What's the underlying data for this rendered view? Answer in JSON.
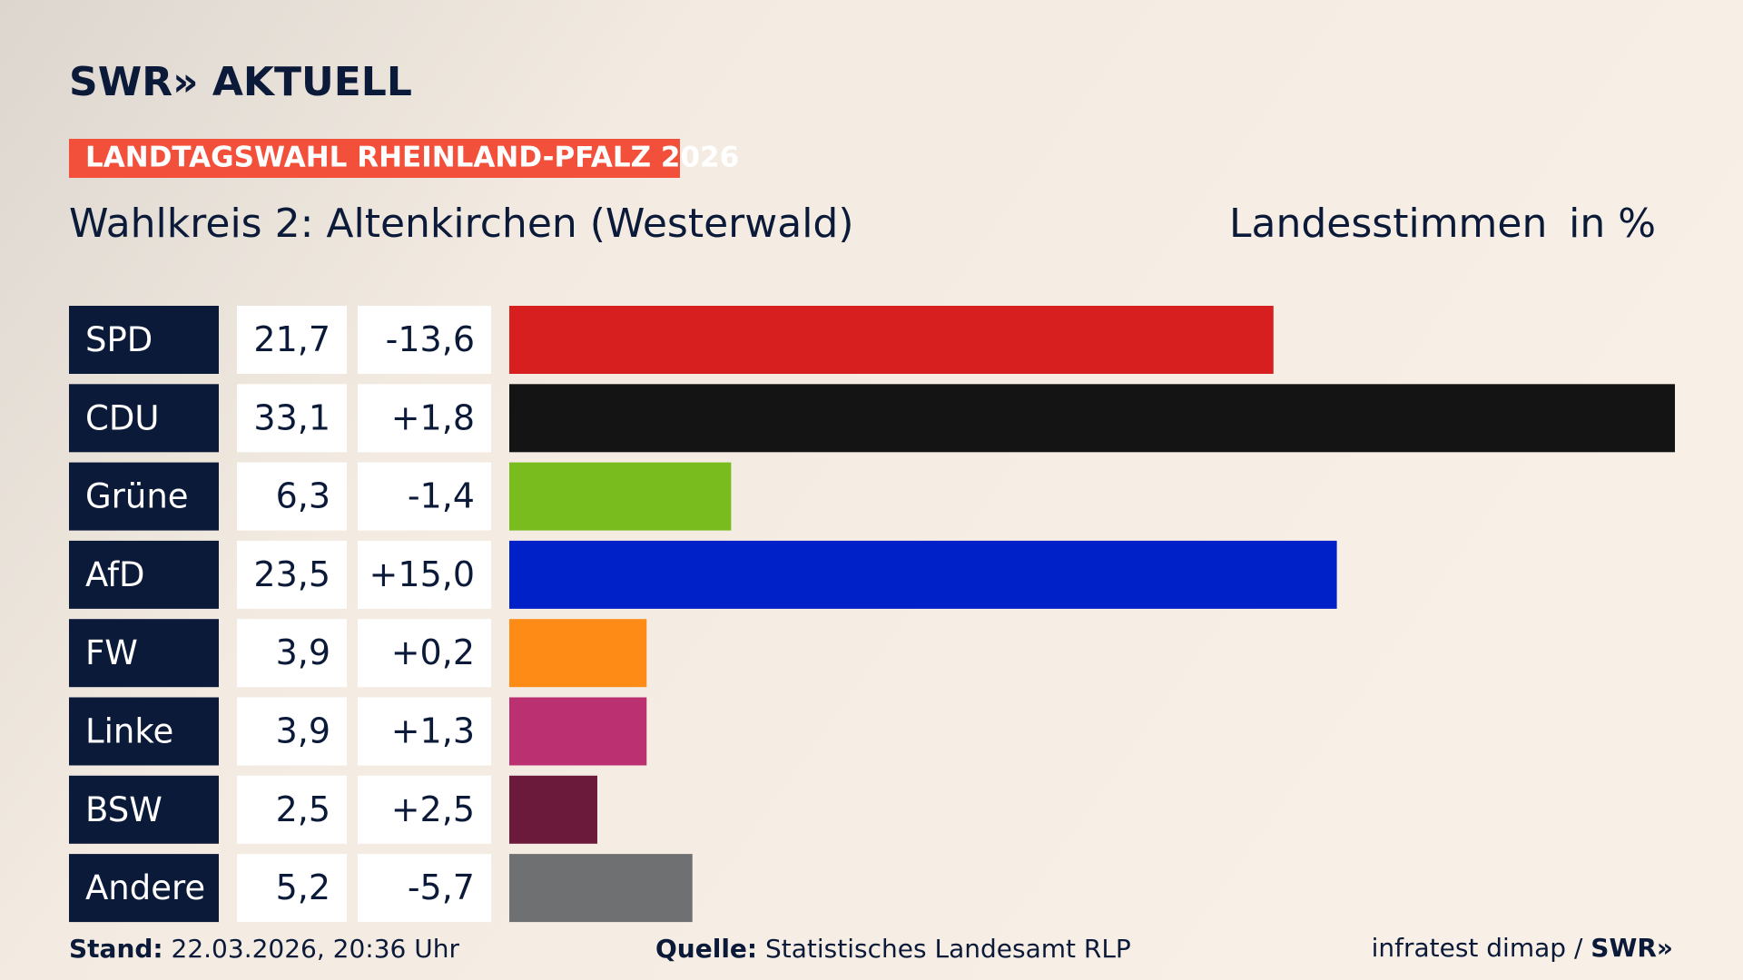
{
  "header": {
    "logo": "SWR» AKTUELL",
    "badge": "LANDTAGSWAHL RHEINLAND-PFALZ 2026"
  },
  "chart_data": {
    "type": "bar",
    "title": "Wahlkreis 2: Altenkirchen (Westerwald)",
    "measure": "Landesstimmen",
    "unit": "in %",
    "categories": [
      "SPD",
      "CDU",
      "Grüne",
      "AfD",
      "FW",
      "Linke",
      "BSW",
      "Andere"
    ],
    "values": [
      21.7,
      33.1,
      6.3,
      23.5,
      3.9,
      3.9,
      2.5,
      5.2
    ],
    "value_labels": [
      "21,7",
      "33,1",
      "6,3",
      "23,5",
      "3,9",
      "3,9",
      "2,5",
      "5,2"
    ],
    "changes": [
      -13.6,
      1.8,
      -1.4,
      15.0,
      0.2,
      1.3,
      2.5,
      -5.7
    ],
    "change_labels": [
      "-13,6",
      "+1,8",
      "-1,4",
      "+15,0",
      "+0,2",
      "+1,3",
      "+2,5",
      "-5,7"
    ],
    "colors": [
      "#d71f1f",
      "#141414",
      "#78bc1e",
      "#0020c8",
      "#ff8b17",
      "#bb3071",
      "#6b1a3c",
      "#6f7072"
    ]
  },
  "footer": {
    "stand_label": "Stand:",
    "stand": "22.03.2026, 20:36 Uhr",
    "source_label": "Quelle:",
    "source": "Statistisches Landesamt RLP",
    "credit": "infratest dimap /",
    "credit_logo": "SWR»"
  }
}
